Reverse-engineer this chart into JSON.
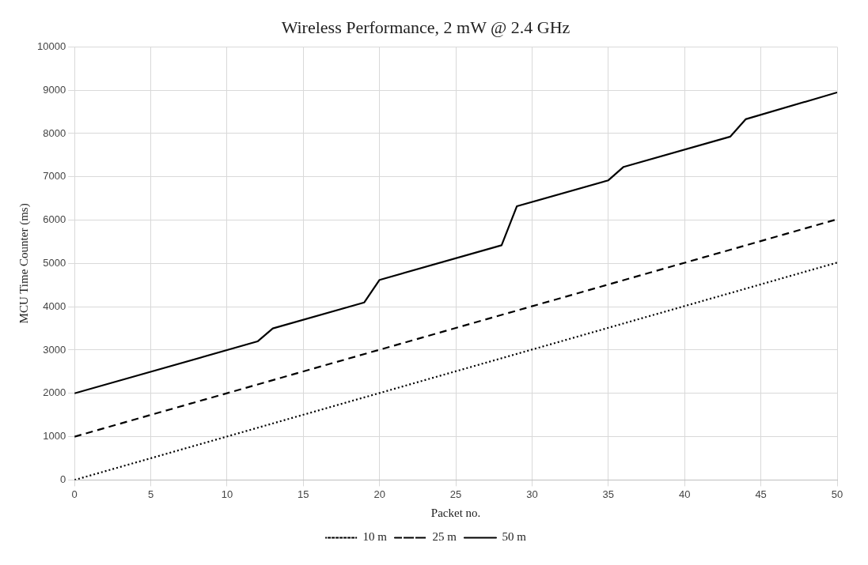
{
  "chart_data": {
    "type": "line",
    "title": "Wireless Performance, 2 mW @ 2.4 GHz",
    "xlabel": "Packet no.",
    "ylabel": "MCU Time Counter (ms)",
    "xlim": [
      0,
      50
    ],
    "xticks": [
      0,
      5,
      10,
      15,
      20,
      25,
      30,
      35,
      40,
      45,
      50
    ],
    "ylim": [
      0,
      10000
    ],
    "yticks": [
      0,
      1000,
      2000,
      3000,
      4000,
      5000,
      6000,
      7000,
      8000,
      9000,
      10000
    ],
    "grid": true,
    "legend": "bottom",
    "marker": "none",
    "series": [
      {
        "name": "10 m",
        "color": "#000000",
        "line_style": "dotted",
        "x": [
          0,
          50
        ],
        "values": [
          0,
          5020
        ]
      },
      {
        "name": "25 m",
        "color": "#000000",
        "line_style": "dashed",
        "x": [
          0,
          50
        ],
        "values": [
          1000,
          6020
        ]
      },
      {
        "name": "50 m",
        "color": "#000000",
        "line_style": "solid",
        "x": [
          0,
          12,
          13,
          19,
          20,
          28,
          29,
          35,
          36,
          43,
          44,
          50
        ],
        "values": [
          2000,
          3200,
          3500,
          4100,
          4620,
          5420,
          6320,
          6920,
          7230,
          7930,
          8330,
          8950
        ]
      }
    ]
  }
}
